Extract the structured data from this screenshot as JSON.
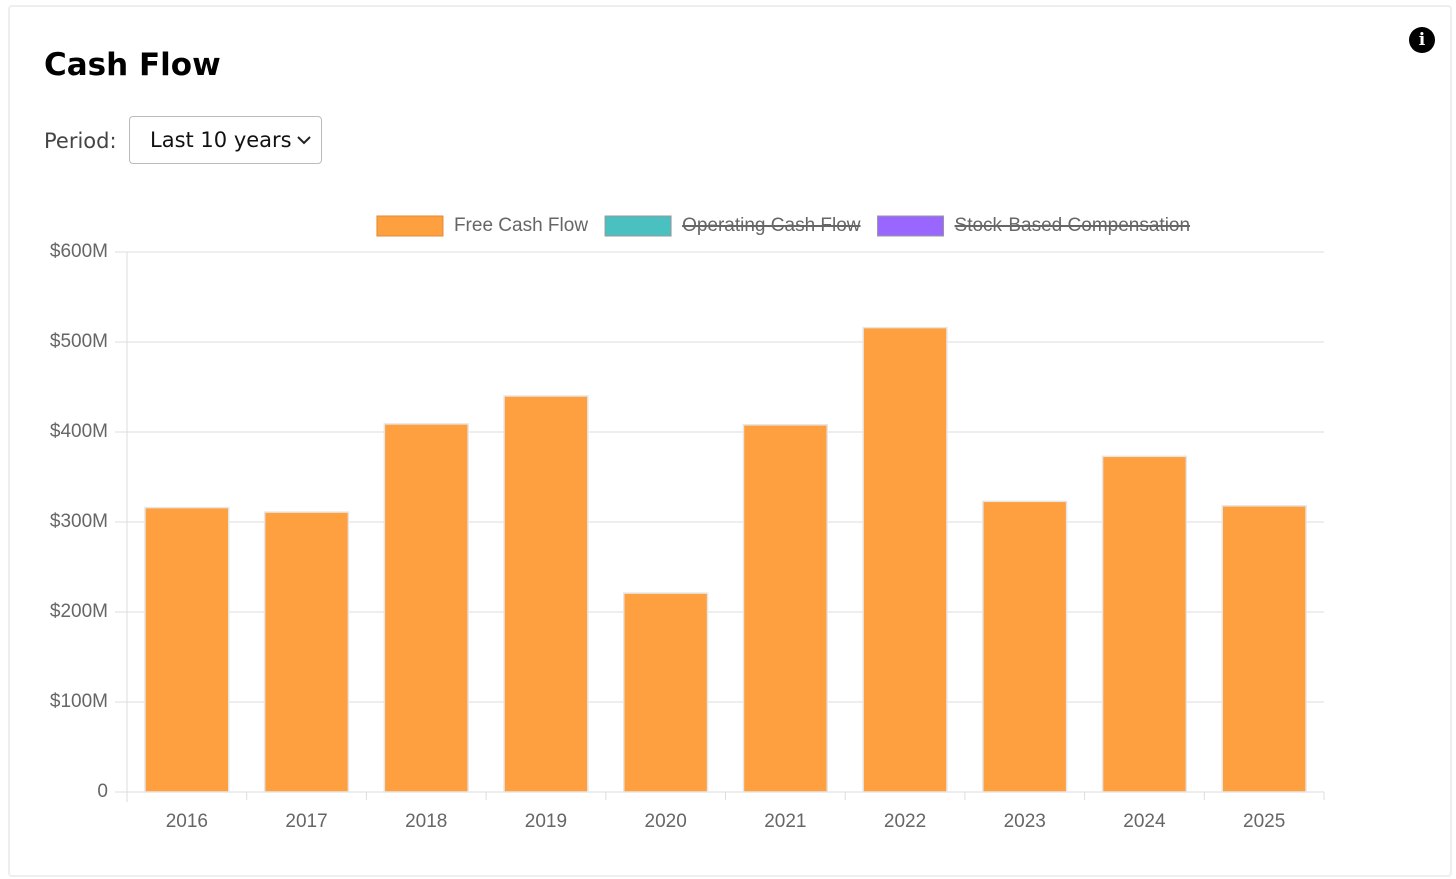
{
  "title": "Cash Flow",
  "period_label": "Period:",
  "period_select": "Last 10 years",
  "chart_data": {
    "type": "bar",
    "categories": [
      "2016",
      "2017",
      "2018",
      "2019",
      "2020",
      "2021",
      "2022",
      "2023",
      "2024",
      "2025"
    ],
    "series": [
      {
        "name": "Free Cash Flow",
        "color": "#ffa040",
        "hidden": false,
        "values": [
          316,
          311,
          409,
          440,
          221,
          408,
          516,
          323,
          373,
          318
        ]
      },
      {
        "name": "Operating Cash Flow",
        "color": "#4bc0c0",
        "hidden": true,
        "values": [
          null,
          null,
          null,
          null,
          null,
          null,
          null,
          null,
          null,
          null
        ]
      },
      {
        "name": "Stock-Based Compensation",
        "color": "#9966ff",
        "hidden": true,
        "values": [
          null,
          null,
          null,
          null,
          null,
          null,
          null,
          null,
          null,
          null
        ]
      }
    ],
    "ylim": [
      0,
      600
    ],
    "yticks": [
      0,
      {
        "value": 100,
        "label": "$100M"
      },
      {
        "value": 200,
        "label": "$200M"
      },
      {
        "value": 300,
        "label": "$300M"
      },
      {
        "value": 400,
        "label": "$400M"
      },
      {
        "value": 500,
        "label": "$500M"
      },
      {
        "value": 600,
        "label": "$600M"
      }
    ],
    "grid": true,
    "legend": "top"
  }
}
